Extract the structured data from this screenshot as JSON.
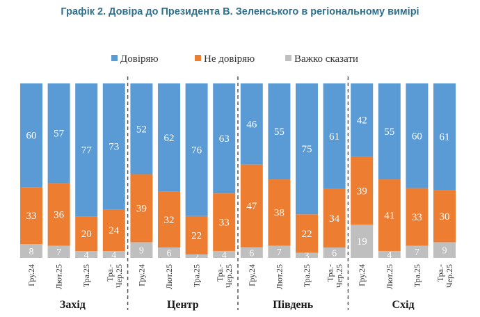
{
  "chart_data": {
    "type": "bar",
    "stacked": true,
    "title": "Графік 2. Довіра до Президента В. Зеленського в регіональному вимірі",
    "legend_position": "top",
    "groups": [
      {
        "name": "Захід",
        "categories": [
          "Гру.24",
          "Лют.25",
          "Тра.25",
          "Тра.-Чер.25"
        ]
      },
      {
        "name": "Центр",
        "categories": [
          "Гру.24",
          "Лют.25",
          "Тра.25",
          "Тра.-Чер.25"
        ]
      },
      {
        "name": "Південь",
        "categories": [
          "Гру.24",
          "Лют.25",
          "Тра.25",
          "Тра.-Чер.25"
        ]
      },
      {
        "name": "Схід",
        "categories": [
          "Гру.24",
          "Лют.25",
          "Тра.25",
          "Тра.-Чер.25"
        ]
      }
    ],
    "series": [
      {
        "name": "Важко сказати",
        "color": "#bfbfbf",
        "values": [
          8,
          7,
          4,
          4,
          9,
          6,
          2,
          4,
          6,
          7,
          3,
          6,
          19,
          4,
          7,
          9
        ]
      },
      {
        "name": "Не довіряю",
        "color": "#ed7d31",
        "values": [
          33,
          36,
          20,
          24,
          39,
          32,
          22,
          33,
          47,
          38,
          22,
          34,
          39,
          41,
          33,
          30
        ]
      },
      {
        "name": "Довіряю",
        "color": "#5b9bd5",
        "values": [
          60,
          57,
          77,
          73,
          52,
          62,
          76,
          63,
          46,
          55,
          75,
          61,
          42,
          55,
          60,
          61
        ]
      }
    ],
    "legend_order": [
      "Довіряю",
      "Не довіряю",
      "Важко сказати"
    ],
    "ylim": [
      0,
      100
    ],
    "grid": false
  }
}
